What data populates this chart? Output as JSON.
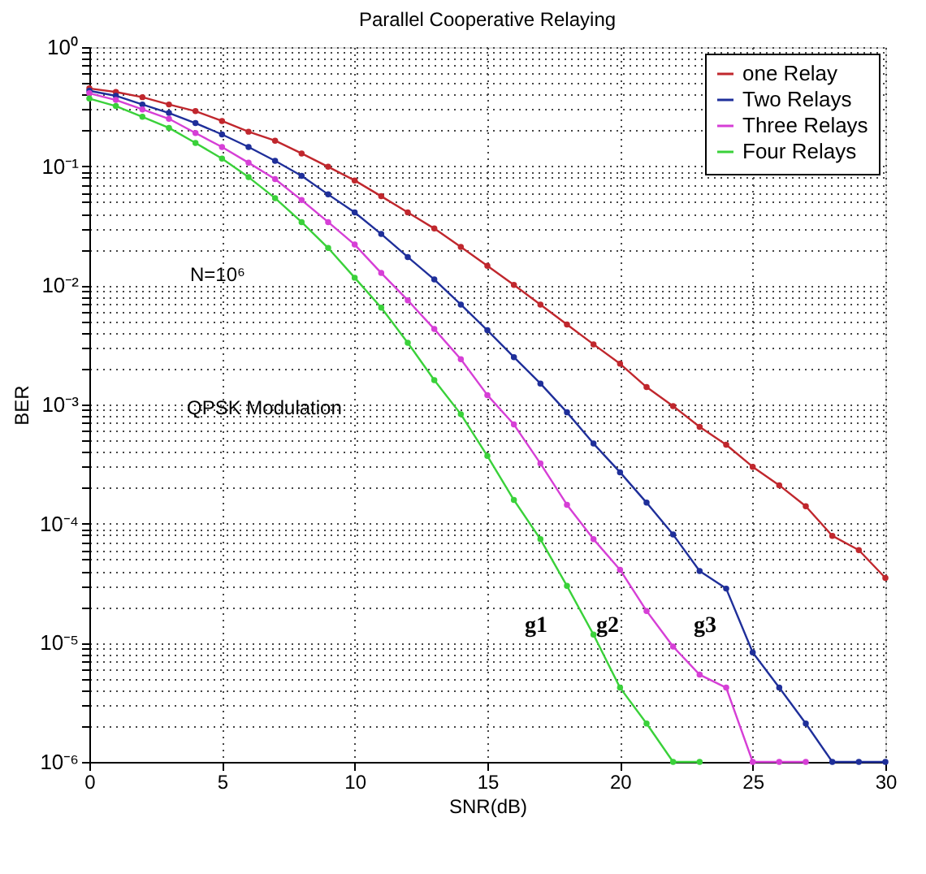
{
  "chart_data": {
    "type": "line",
    "title": "Parallel Cooperative Relaying",
    "xlabel": "SNR(dB)",
    "ylabel": "BER",
    "log": "y",
    "grid": true,
    "legend": "top right",
    "marker": "circle",
    "line_style": "solid",
    "x": [
      0,
      1,
      2,
      3,
      4,
      5,
      6,
      7,
      8,
      9,
      10,
      11,
      12,
      13,
      14,
      15,
      16,
      17,
      18,
      19,
      20,
      21,
      22,
      23,
      24,
      25,
      26,
      27,
      28,
      29,
      30
    ],
    "xlim": [
      0,
      30
    ],
    "xticks": [
      0,
      5,
      10,
      15,
      20,
      25,
      30
    ],
    "ylim": [
      1e-06,
      1
    ],
    "yticks": [
      {
        "value": 1e-06,
        "label": "10⁻⁶"
      },
      {
        "value": 2e-06,
        "label": null
      },
      {
        "value": 3e-06,
        "label": null
      },
      {
        "value": 4e-06,
        "label": null
      },
      {
        "value": 5e-06,
        "label": null
      },
      {
        "value": 6e-06,
        "label": null
      },
      {
        "value": 7e-06,
        "label": null
      },
      {
        "value": 8e-06,
        "label": null
      },
      {
        "value": 9e-06,
        "label": null
      },
      {
        "value": 1e-05,
        "label": "10⁻⁵"
      },
      {
        "value": 2e-05,
        "label": null
      },
      {
        "value": 3e-05,
        "label": null
      },
      {
        "value": 4e-05,
        "label": null
      },
      {
        "value": 5e-05,
        "label": null
      },
      {
        "value": 6e-05,
        "label": null
      },
      {
        "value": 7e-05,
        "label": null
      },
      {
        "value": 8e-05,
        "label": null
      },
      {
        "value": 9e-05,
        "label": null
      },
      {
        "value": 0.0001,
        "label": "10⁻⁴"
      },
      {
        "value": 0.0002,
        "label": null
      },
      {
        "value": 0.0003,
        "label": null
      },
      {
        "value": 0.0004,
        "label": null
      },
      {
        "value": 0.0005,
        "label": null
      },
      {
        "value": 0.0006,
        "label": null
      },
      {
        "value": 0.0007,
        "label": null
      },
      {
        "value": 0.0008,
        "label": null
      },
      {
        "value": 0.0009,
        "label": null
      },
      {
        "value": 0.001,
        "label": "10⁻³"
      },
      {
        "value": 0.002,
        "label": null
      },
      {
        "value": 0.003,
        "label": null
      },
      {
        "value": 0.004,
        "label": null
      },
      {
        "value": 0.005,
        "label": null
      },
      {
        "value": 0.006,
        "label": null
      },
      {
        "value": 0.007,
        "label": null
      },
      {
        "value": 0.008,
        "label": null
      },
      {
        "value": 0.009,
        "label": null
      },
      {
        "value": 0.01,
        "label": "10⁻²"
      },
      {
        "value": 0.02,
        "label": null
      },
      {
        "value": 0.03,
        "label": null
      },
      {
        "value": 0.04,
        "label": null
      },
      {
        "value": 0.05,
        "label": null
      },
      {
        "value": 0.06,
        "label": null
      },
      {
        "value": 0.07,
        "label": null
      },
      {
        "value": 0.08,
        "label": null
      },
      {
        "value": 0.09,
        "label": null
      },
      {
        "value": 0.1,
        "label": "10⁻¹"
      },
      {
        "value": 0.2,
        "label": null
      },
      {
        "value": 0.3,
        "label": null
      },
      {
        "value": 0.4,
        "label": null
      },
      {
        "value": 0.5,
        "label": null
      },
      {
        "value": 0.6,
        "label": null
      },
      {
        "value": 0.7,
        "label": null
      },
      {
        "value": 0.8,
        "label": null
      },
      {
        "value": 0.9,
        "label": null
      },
      {
        "value": 1,
        "label": "10⁰"
      }
    ],
    "series": [
      {
        "name": "one Relay",
        "color": "#c0272d",
        "values": [
          0.45,
          0.42,
          0.38,
          0.33,
          0.29,
          0.24,
          0.195,
          0.164,
          0.128,
          0.099,
          0.076,
          0.056,
          0.041,
          0.03,
          0.021,
          0.0146,
          0.0101,
          0.0069,
          0.0047,
          0.0032,
          0.0022,
          0.0014,
          0.00097,
          0.00065,
          0.00046,
          0.0003,
          0.00021,
          0.00014,
          7.9e-05,
          6e-05,
          3.5e-05
        ]
      },
      {
        "name": "Two Relays",
        "color": "#1f2f9a",
        "values": [
          0.43,
          0.39,
          0.33,
          0.28,
          0.23,
          0.185,
          0.145,
          0.111,
          0.083,
          0.058,
          0.041,
          0.027,
          0.0173,
          0.0112,
          0.0069,
          0.0042,
          0.0025,
          0.0015,
          0.00086,
          0.00047,
          0.00027,
          0.00015,
          8.1e-05,
          4e-05,
          2.85e-05,
          8.3e-06,
          4.2e-06,
          2.1e-06,
          1e-06,
          1e-06,
          1e-06
        ]
      },
      {
        "name": "Three Relays",
        "color": "#d63fd6",
        "values": [
          0.41,
          0.36,
          0.3,
          0.25,
          0.19,
          0.145,
          0.107,
          0.078,
          0.052,
          0.034,
          0.022,
          0.0127,
          0.0075,
          0.0043,
          0.0024,
          0.0012,
          0.00068,
          0.00032,
          0.000144,
          7.4e-05,
          4.1e-05,
          1.85e-05,
          9.3e-06,
          5.4e-06,
          4.2e-06,
          1e-06,
          1e-06,
          1e-06,
          null,
          null,
          null
        ]
      },
      {
        "name": "Four Relays",
        "color": "#3ad13a",
        "values": [
          0.37,
          0.32,
          0.26,
          0.21,
          0.157,
          0.116,
          0.081,
          0.054,
          0.034,
          0.0206,
          0.0116,
          0.0065,
          0.0033,
          0.0016,
          0.00083,
          0.00037,
          0.000158,
          7.4e-05,
          3e-05,
          1.17e-05,
          4.2e-06,
          2.1e-06,
          1e-06,
          1e-06,
          null,
          null,
          null,
          null,
          null,
          null,
          null
        ]
      }
    ],
    "annotations": [
      "N=10⁶",
      "QPSK Modulation",
      "g1",
      "g2",
      "g3"
    ]
  }
}
